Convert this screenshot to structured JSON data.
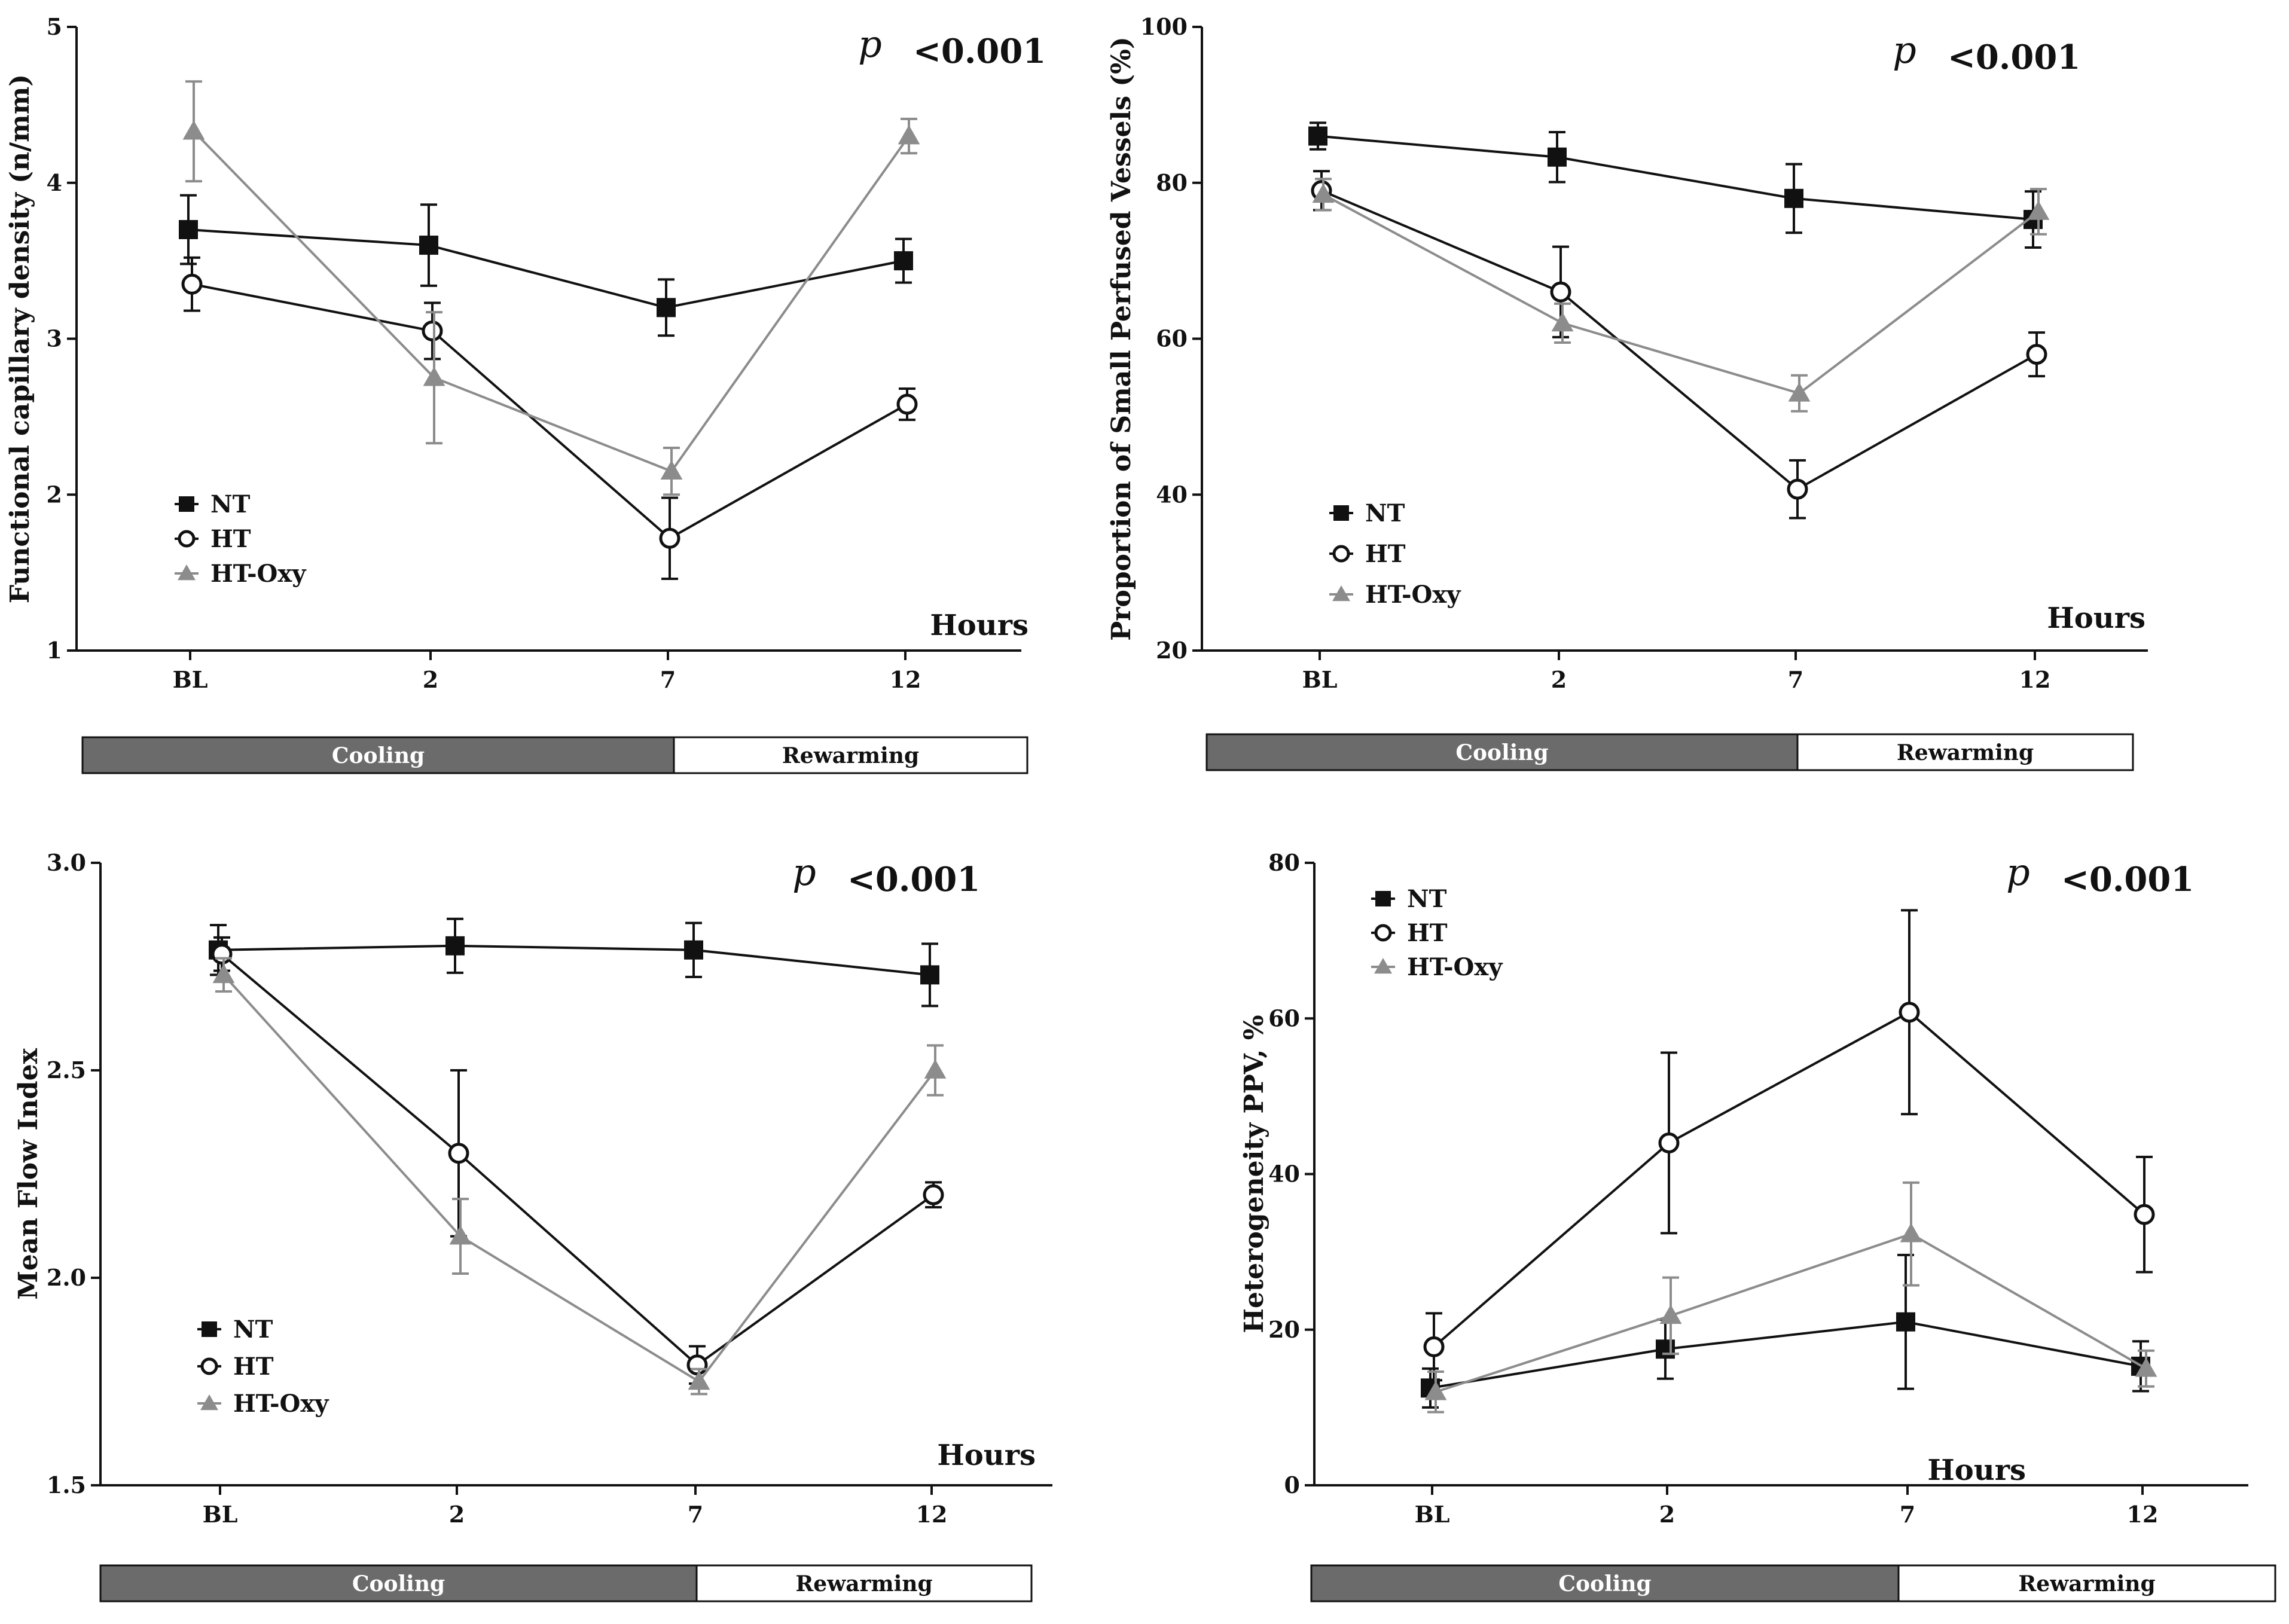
{
  "colors": {
    "NT": "#111111",
    "HT": "#111111",
    "HT-Oxy": "#8c8c8c",
    "cooling_fill": "#6b6b6b",
    "rewarming_fill": "#ffffff"
  },
  "chart_data": [
    {
      "type": "line",
      "ylabel": "Functional capillary density (n/mm)",
      "xlabel": "Hours",
      "categories": [
        "BL",
        "2",
        "7",
        "12"
      ],
      "ylim": [
        1,
        5
      ],
      "yticks": [
        "1",
        "2",
        "3",
        "4",
        "5"
      ],
      "p_text": "p",
      "p_value": "<0.001",
      "legend": [
        "NT",
        "HT",
        "HT-Oxy"
      ],
      "phases": [
        "Cooling",
        "Rewarming"
      ],
      "series": [
        {
          "name": "NT",
          "values": [
            3.7,
            3.6,
            3.2,
            3.5
          ],
          "errors": [
            0.22,
            0.26,
            0.18,
            0.14
          ]
        },
        {
          "name": "HT",
          "values": [
            3.35,
            3.05,
            1.72,
            2.58
          ],
          "errors": [
            0.17,
            0.18,
            0.26,
            0.1
          ]
        },
        {
          "name": "HT-Oxy",
          "values": [
            4.33,
            2.75,
            2.15,
            4.3
          ],
          "errors": [
            0.32,
            0.42,
            0.15,
            0.11
          ]
        }
      ]
    },
    {
      "type": "line",
      "ylabel": "Proportion of Small Perfused Vessels (%)",
      "xlabel": "Hours",
      "categories": [
        "BL",
        "2",
        "7",
        "12"
      ],
      "ylim": [
        20,
        100
      ],
      "yticks": [
        "20",
        "40",
        "60",
        "80",
        "100"
      ],
      "p_text": "p",
      "p_value": "<0.001",
      "legend": [
        "NT",
        "HT",
        "HT-Oxy"
      ],
      "phases": [
        "Cooling",
        "Rewarming"
      ],
      "series": [
        {
          "name": "NT",
          "values": [
            86,
            83.3,
            78,
            75.3
          ],
          "errors": [
            1.7,
            3.2,
            4.4,
            3.6
          ]
        },
        {
          "name": "HT",
          "values": [
            79,
            66,
            40.7,
            58
          ],
          "errors": [
            2.5,
            5.8,
            3.7,
            2.8
          ]
        },
        {
          "name": "HT-Oxy",
          "values": [
            78.5,
            62,
            53,
            76.3
          ],
          "errors": [
            2.0,
            2.5,
            2.3,
            2.9
          ]
        }
      ]
    },
    {
      "type": "line",
      "ylabel": "Mean  Flow Index",
      "xlabel": "Hours",
      "categories": [
        "BL",
        "2",
        "7",
        "12"
      ],
      "ylim": [
        1.5,
        3.0
      ],
      "yticks": [
        "1.5",
        "2.0",
        "2.5",
        "3.0"
      ],
      "p_text": "p",
      "p_value": "<0.001",
      "legend": [
        "NT",
        "HT",
        "HT-Oxy"
      ],
      "phases": [
        "Cooling",
        "Rewarming"
      ],
      "series": [
        {
          "name": "NT",
          "values": [
            2.79,
            2.8,
            2.79,
            2.73
          ],
          "errors": [
            0.06,
            0.065,
            0.065,
            0.075
          ]
        },
        {
          "name": "HT",
          "values": [
            2.78,
            2.3,
            1.79,
            2.2
          ],
          "errors": [
            0.04,
            0.2,
            0.045,
            0.03
          ]
        },
        {
          "name": "HT-Oxy",
          "values": [
            2.73,
            2.1,
            1.75,
            2.5
          ],
          "errors": [
            0.04,
            0.09,
            0.03,
            0.06
          ]
        }
      ]
    },
    {
      "type": "line",
      "ylabel": "Heterogeneity PPV, %",
      "xlabel": "Hours",
      "categories": [
        "BL",
        "2",
        "7",
        "12"
      ],
      "ylim": [
        0,
        80
      ],
      "yticks": [
        "0",
        "20",
        "40",
        "60",
        "80"
      ],
      "p_text": "p",
      "p_value": "<0.001",
      "legend": [
        "NT",
        "HT",
        "HT-Oxy"
      ],
      "phases": [
        "Cooling",
        "Rewarming"
      ],
      "series": [
        {
          "name": "NT",
          "values": [
            12.5,
            17.5,
            21,
            15.3
          ],
          "errors": [
            2.5,
            3.8,
            8.6,
            3.2
          ]
        },
        {
          "name": "HT",
          "values": [
            17.8,
            44,
            60.8,
            34.8
          ],
          "errors": [
            4.3,
            11.6,
            13.1,
            7.4
          ]
        },
        {
          "name": "HT-Oxy",
          "values": [
            12,
            21.8,
            32.3,
            15
          ],
          "errors": [
            2.6,
            4.9,
            6.6,
            2.3
          ]
        }
      ]
    }
  ]
}
